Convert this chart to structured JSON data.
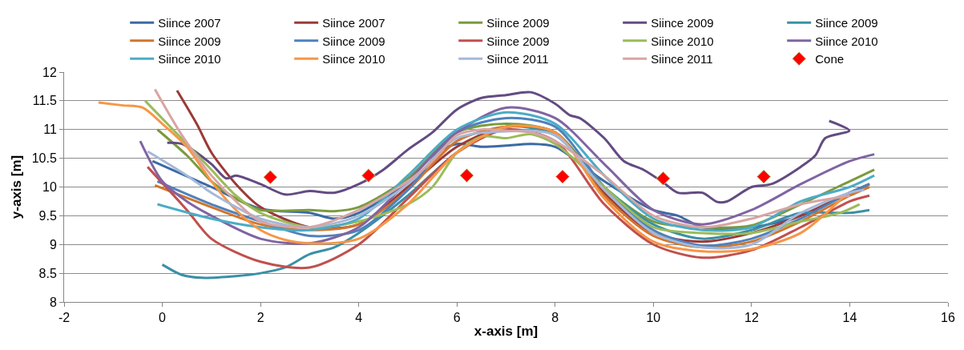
{
  "chart_data": {
    "type": "line",
    "xlabel": "x-axis [m]",
    "ylabel": "y-axis [m]",
    "xlim": [
      -2,
      16
    ],
    "xticks": [
      -2,
      0,
      2,
      4,
      6,
      8,
      10,
      12,
      14,
      16
    ],
    "ylim": [
      8,
      12
    ],
    "yticks": [
      8,
      8.5,
      9,
      9.5,
      10,
      10.5,
      11,
      11.5,
      12
    ],
    "grid": "y",
    "legend": "top",
    "marker": "none",
    "line_style": "solid",
    "series": [
      {
        "name": "Siince 2007",
        "color": "#3c6aa4",
        "x": [
          -0.2,
          1.0,
          2.0,
          3.0,
          3.5,
          4.0,
          5.0,
          5.5,
          6.0,
          6.5,
          7.0,
          7.5,
          8.0,
          9.0,
          10.0,
          10.5,
          11.0,
          12.0,
          13.0,
          14.0,
          14.4
        ],
        "values": [
          10.45,
          10.0,
          9.62,
          9.55,
          9.45,
          9.55,
          10.1,
          10.55,
          10.75,
          10.7,
          10.72,
          10.75,
          10.7,
          10.1,
          9.6,
          9.5,
          9.3,
          9.3,
          9.5,
          9.9,
          10.05
        ]
      },
      {
        "name": "Siince 2007",
        "color": "#9b3a37",
        "x": [
          0.3,
          0.7,
          1.0,
          1.5,
          2.0,
          3.0,
          4.0,
          5.0,
          6.0,
          7.0,
          8.0,
          9.0,
          10.0,
          11.0,
          12.0,
          13.0,
          14.0,
          14.4
        ],
        "values": [
          11.68,
          11.1,
          10.6,
          10.05,
          9.65,
          9.3,
          9.35,
          10.0,
          10.7,
          11.05,
          10.95,
          9.9,
          9.2,
          9.05,
          9.2,
          9.5,
          9.9,
          10.05
        ]
      },
      {
        "name": "Siince 2009",
        "color": "#7a9a3e",
        "x": [
          -0.1,
          0.5,
          1.0,
          1.5,
          2.0,
          3.0,
          3.5,
          4.0,
          5.0,
          6.0,
          7.0,
          8.0,
          9.0,
          10.0,
          11.0,
          12.0,
          13.0,
          14.0,
          14.5
        ],
        "values": [
          11.0,
          10.55,
          10.1,
          9.8,
          9.6,
          9.6,
          9.58,
          9.65,
          10.15,
          10.95,
          11.1,
          10.95,
          10.0,
          9.4,
          9.3,
          9.33,
          9.7,
          10.1,
          10.3
        ]
      },
      {
        "name": "Siince 2009",
        "color": "#634b82",
        "x": [
          0.1,
          0.4,
          1.0,
          1.3,
          1.5,
          2.0,
          2.5,
          3.0,
          3.5,
          4.0,
          4.5,
          5.0,
          5.5,
          6.0,
          6.5,
          7.0,
          7.5,
          8.0,
          8.3,
          8.5,
          9.0,
          9.4,
          9.8,
          10.2,
          10.5,
          11.0,
          11.3,
          11.5,
          12.0,
          12.4,
          13.0,
          13.3,
          13.5,
          13.99,
          13.58
        ],
        "values": [
          10.77,
          10.75,
          10.4,
          10.15,
          10.2,
          10.05,
          9.87,
          9.93,
          9.9,
          10.05,
          10.3,
          10.65,
          10.95,
          11.35,
          11.55,
          11.6,
          11.65,
          11.45,
          11.25,
          11.2,
          10.85,
          10.45,
          10.3,
          10.08,
          9.9,
          9.9,
          9.74,
          9.75,
          10.0,
          10.05,
          10.35,
          10.55,
          10.85,
          10.98,
          11.15
        ]
      },
      {
        "name": "Siince 2009",
        "color": "#3a90a6",
        "x": [
          0.0,
          0.4,
          0.8,
          1.5,
          2.0,
          2.5,
          3.0,
          3.5,
          4.0,
          5.0,
          6.0,
          7.0,
          8.0,
          9.0,
          10.0,
          11.0,
          12.0,
          13.0,
          13.7,
          14.0,
          14.4
        ],
        "values": [
          8.65,
          8.47,
          8.42,
          8.45,
          8.5,
          8.6,
          8.83,
          8.95,
          9.2,
          9.85,
          10.6,
          11.05,
          10.9,
          10.0,
          9.35,
          9.1,
          9.25,
          9.55,
          9.55,
          9.55,
          9.6
        ]
      },
      {
        "name": "Siince 2009",
        "color": "#d2752b",
        "x": [
          -0.15,
          1.0,
          2.0,
          3.0,
          4.0,
          5.0,
          6.0,
          7.0,
          8.0,
          9.0,
          10.0,
          11.0,
          12.0,
          13.0,
          14.0,
          14.4
        ],
        "values": [
          10.03,
          9.65,
          9.35,
          9.25,
          9.35,
          9.95,
          10.8,
          11.05,
          10.95,
          9.85,
          9.15,
          8.95,
          9.05,
          9.4,
          9.85,
          10.0
        ]
      },
      {
        "name": "Siince 2009",
        "color": "#4f81bd",
        "x": [
          -0.1,
          1.0,
          2.0,
          3.0,
          4.0,
          5.0,
          6.0,
          7.0,
          8.0,
          9.0,
          10.0,
          11.0,
          12.0,
          13.0,
          14.0,
          14.4
        ],
        "values": [
          10.1,
          9.7,
          9.4,
          9.15,
          9.25,
          9.95,
          10.95,
          11.2,
          11.05,
          10.0,
          9.25,
          8.98,
          9.1,
          9.45,
          9.9,
          10.05
        ]
      },
      {
        "name": "Siince 2009",
        "color": "#c0504d",
        "x": [
          -0.3,
          0.5,
          1.0,
          2.0,
          3.0,
          4.0,
          5.0,
          6.0,
          7.0,
          8.0,
          9.0,
          10.0,
          11.0,
          12.0,
          13.0,
          14.0,
          14.4
        ],
        "values": [
          10.35,
          9.6,
          9.1,
          8.7,
          8.6,
          9.0,
          9.8,
          10.6,
          11.0,
          10.8,
          9.7,
          9.0,
          8.77,
          8.9,
          9.3,
          9.75,
          9.85
        ]
      },
      {
        "name": "Siince 2010",
        "color": "#9bbb59",
        "x": [
          -0.35,
          0.5,
          1.0,
          1.5,
          2.0,
          3.0,
          4.0,
          5.0,
          5.5,
          6.0,
          6.5,
          7.0,
          7.5,
          8.0,
          8.5,
          9.0,
          10.0,
          11.0,
          12.0,
          13.0,
          13.8,
          14.2
        ],
        "values": [
          11.5,
          10.75,
          10.3,
          9.85,
          9.55,
          9.3,
          9.4,
          9.7,
          10.0,
          10.6,
          10.88,
          10.85,
          10.92,
          10.75,
          10.4,
          10.0,
          9.3,
          9.2,
          9.2,
          9.4,
          9.55,
          9.7
        ]
      },
      {
        "name": "Siince 2010",
        "color": "#8064a2",
        "x": [
          -0.45,
          0.0,
          0.5,
          1.0,
          2.0,
          3.0,
          4.0,
          5.0,
          6.0,
          7.0,
          8.0,
          9.0,
          10.0,
          11.0,
          12.0,
          13.0,
          14.0,
          14.5
        ],
        "values": [
          10.8,
          10.1,
          9.75,
          9.5,
          9.1,
          9.02,
          9.3,
          10.1,
          10.95,
          11.38,
          11.2,
          10.4,
          9.6,
          9.35,
          9.6,
          10.05,
          10.45,
          10.57
        ]
      },
      {
        "name": "Siince 2010",
        "color": "#4bacc6",
        "x": [
          -0.1,
          1.0,
          2.0,
          3.0,
          4.0,
          5.0,
          6.0,
          7.0,
          8.0,
          9.0,
          10.0,
          11.0,
          12.0,
          13.0,
          14.0,
          14.5
        ],
        "values": [
          9.7,
          9.45,
          9.3,
          9.25,
          9.45,
          10.2,
          11.0,
          11.3,
          11.1,
          10.2,
          9.45,
          9.25,
          9.3,
          9.75,
          10.0,
          10.2
        ]
      },
      {
        "name": "Siince 2010",
        "color": "#f79646",
        "x": [
          -1.3,
          -0.8,
          -0.4,
          0.0,
          0.5,
          1.0,
          1.5,
          2.0,
          2.5,
          3.0,
          4.0,
          5.0,
          6.0,
          7.0,
          8.0,
          9.0,
          10.0,
          11.0,
          12.0,
          13.0,
          13.9
        ],
        "values": [
          11.47,
          11.42,
          11.38,
          11.1,
          10.7,
          10.1,
          9.6,
          9.25,
          9.08,
          9.02,
          9.1,
          9.7,
          10.6,
          11.05,
          10.95,
          9.8,
          9.05,
          8.88,
          8.92,
          9.2,
          9.85
        ]
      },
      {
        "name": "Siince 2011",
        "color": "#a5b8d8",
        "x": [
          -0.3,
          0.5,
          1.0,
          2.0,
          3.0,
          4.0,
          5.0,
          6.0,
          7.0,
          8.0,
          9.0,
          10.0,
          11.0,
          12.0,
          13.0,
          14.0,
          14.3
        ],
        "values": [
          10.62,
          10.2,
          9.9,
          9.45,
          9.3,
          9.5,
          10.05,
          10.85,
          10.97,
          10.9,
          9.95,
          9.2,
          8.95,
          9.0,
          9.55,
          9.9,
          9.95
        ]
      },
      {
        "name": "Siince 2011",
        "color": "#d8a5a3",
        "x": [
          -0.15,
          0.4,
          1.0,
          1.5,
          2.0,
          3.0,
          4.0,
          5.0,
          5.5,
          6.0,
          6.5,
          7.0,
          7.5,
          8.0,
          9.0,
          10.0,
          11.0,
          12.0,
          13.0,
          14.0
        ],
        "values": [
          11.7,
          10.9,
          10.2,
          9.75,
          9.4,
          9.3,
          9.6,
          10.1,
          10.45,
          10.9,
          11.0,
          10.98,
          10.95,
          10.8,
          10.2,
          9.5,
          9.3,
          9.45,
          9.7,
          9.85
        ]
      },
      {
        "name": "Cone",
        "type": "scatter",
        "marker": "diamond",
        "color": "#ff0000",
        "x": [
          2.2,
          4.2,
          6.2,
          8.15,
          10.2,
          12.25
        ],
        "values": [
          10.17,
          10.2,
          10.2,
          10.18,
          10.15,
          10.18
        ]
      }
    ]
  }
}
